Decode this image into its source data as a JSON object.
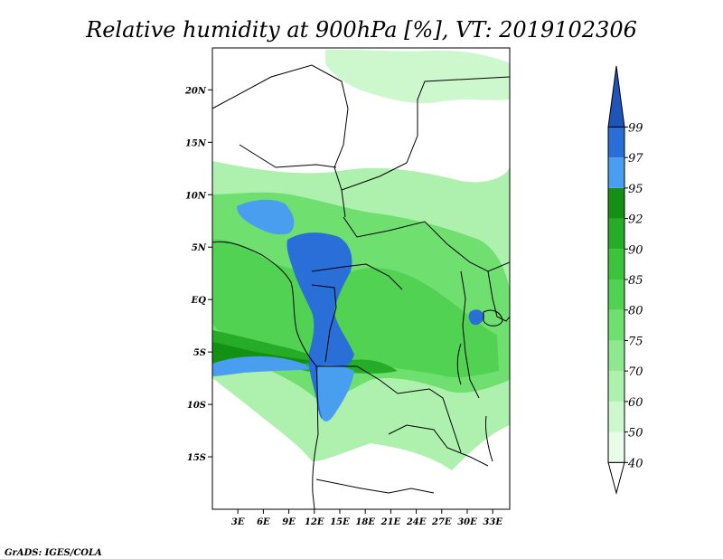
{
  "title": "Relative humidity at 900hPa [%], VT: 2019102306",
  "footer": "GrADS: IGES/COLA",
  "map": {
    "lon_range": [
      0,
      35
    ],
    "lat_range": [
      -20,
      24
    ],
    "lat_ticks": [
      {
        "value": 20,
        "label": "20N"
      },
      {
        "value": 15,
        "label": "15N"
      },
      {
        "value": 10,
        "label": "10N"
      },
      {
        "value": 5,
        "label": "5N"
      },
      {
        "value": 0,
        "label": "EQ"
      },
      {
        "value": -5,
        "label": "5S"
      },
      {
        "value": -10,
        "label": "10S"
      },
      {
        "value": -15,
        "label": "15S"
      }
    ],
    "lon_ticks": [
      {
        "value": 3,
        "label": "3E"
      },
      {
        "value": 6,
        "label": "6E"
      },
      {
        "value": 9,
        "label": "9E"
      },
      {
        "value": 12,
        "label": "12E"
      },
      {
        "value": 15,
        "label": "15E"
      },
      {
        "value": 18,
        "label": "18E"
      },
      {
        "value": 21,
        "label": "21E"
      },
      {
        "value": 24,
        "label": "24E"
      },
      {
        "value": 27,
        "label": "27E"
      },
      {
        "value": 30,
        "label": "30E"
      },
      {
        "value": 33,
        "label": "33E"
      }
    ]
  },
  "colorbar": {
    "levels": [
      "40",
      "50",
      "60",
      "70",
      "75",
      "80",
      "85",
      "90",
      "92",
      "95",
      "97",
      "99"
    ],
    "colors": [
      "#ffffff",
      "#e9fbe9",
      "#cdf7cd",
      "#aef0ae",
      "#8fe88f",
      "#6fdf6f",
      "#52d252",
      "#3cc33c",
      "#27ac27",
      "#149114",
      "#4a9ef0",
      "#2a6fd8",
      "#1f55b8"
    ]
  },
  "colors": {
    "dry": "#ffffff",
    "moist_green": "#52d252",
    "saturated_blue": "#2a6fd8",
    "border": "#000000"
  }
}
